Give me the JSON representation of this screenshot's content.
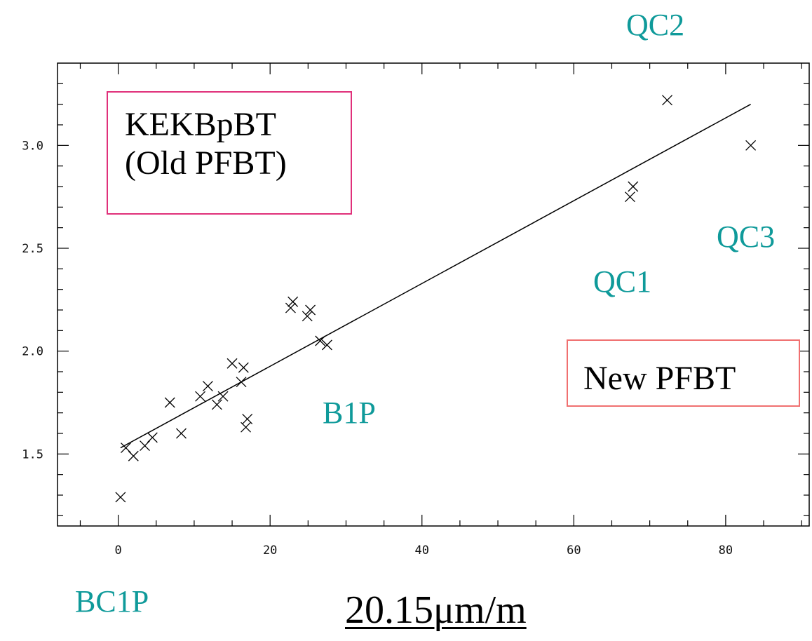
{
  "chart_data": {
    "type": "scatter",
    "xlim": [
      -8,
      91
    ],
    "ylim": [
      1.15,
      3.4
    ],
    "x_ticks": [
      0,
      20,
      40,
      60,
      80
    ],
    "x_tick_labels": [
      "0",
      "20",
      "40",
      "60",
      "80"
    ],
    "y_ticks": [
      1.5,
      2.0,
      2.5,
      3.0
    ],
    "y_tick_labels": [
      "1.5",
      "2.0",
      "2.5",
      "3.0"
    ],
    "grid": false,
    "points": [
      {
        "x": 0.3,
        "y": 1.29
      },
      {
        "x": 1.0,
        "y": 1.53
      },
      {
        "x": 2.0,
        "y": 1.49
      },
      {
        "x": 3.5,
        "y": 1.54
      },
      {
        "x": 4.5,
        "y": 1.58
      },
      {
        "x": 6.8,
        "y": 1.75
      },
      {
        "x": 8.3,
        "y": 1.6
      },
      {
        "x": 10.8,
        "y": 1.78
      },
      {
        "x": 11.8,
        "y": 1.83
      },
      {
        "x": 13.0,
        "y": 1.74
      },
      {
        "x": 13.8,
        "y": 1.78
      },
      {
        "x": 15.0,
        "y": 1.94
      },
      {
        "x": 16.2,
        "y": 1.85
      },
      {
        "x": 16.5,
        "y": 1.92
      },
      {
        "x": 16.8,
        "y": 1.63
      },
      {
        "x": 17.0,
        "y": 1.67
      },
      {
        "x": 22.7,
        "y": 2.21
      },
      {
        "x": 23.0,
        "y": 2.24
      },
      {
        "x": 24.9,
        "y": 2.17
      },
      {
        "x": 25.3,
        "y": 2.2
      },
      {
        "x": 26.6,
        "y": 2.05
      },
      {
        "x": 27.5,
        "y": 2.03
      },
      {
        "x": 67.4,
        "y": 2.75
      },
      {
        "x": 67.8,
        "y": 2.8
      },
      {
        "x": 72.3,
        "y": 3.22
      },
      {
        "x": 83.3,
        "y": 3.0
      }
    ],
    "fit_line": {
      "x": [
        0.3,
        83.3
      ],
      "y": [
        1.53,
        3.2
      ]
    }
  },
  "annotations": {
    "qc2": "QC2",
    "qc3": "QC3",
    "qc1": "QC1",
    "b1p": "B1P",
    "bc1p": "BC1P"
  },
  "boxes": {
    "kekb_line1": "KEKBpBT",
    "kekb_line2": "(Old PFBT)",
    "new_pfbt": "New PFBT"
  },
  "units_label": "20.15μm/m",
  "colors": {
    "teal": "#0f9a9a",
    "kekb_border": "#e0307a",
    "new_border": "#f07070"
  }
}
